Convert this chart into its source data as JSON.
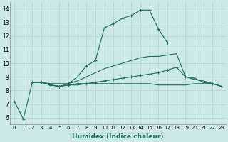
{
  "xlabel": "Humidex (Indice chaleur)",
  "background_color": "#cce8e8",
  "line_color": "#1a6b5a",
  "xlim": [
    -0.5,
    23.5
  ],
  "ylim": [
    5.5,
    14.5
  ],
  "yticks": [
    6,
    7,
    8,
    9,
    10,
    11,
    12,
    13,
    14
  ],
  "xticks": [
    0,
    1,
    2,
    3,
    4,
    5,
    6,
    7,
    8,
    9,
    10,
    11,
    12,
    13,
    14,
    15,
    16,
    17,
    18,
    19,
    20,
    21,
    22,
    23
  ],
  "series": [
    {
      "x": [
        0,
        1,
        2,
        3,
        4,
        5,
        6,
        7,
        8,
        9,
        10,
        11,
        12,
        13,
        14,
        15,
        16,
        17
      ],
      "y": [
        7.2,
        5.9,
        8.6,
        8.6,
        8.4,
        8.3,
        8.5,
        9.0,
        9.8,
        10.2,
        12.6,
        12.9,
        13.3,
        13.5,
        13.9,
        13.9,
        12.5,
        11.5
      ],
      "marker": "+",
      "markersize": 3,
      "linewidth": 0.8
    },
    {
      "x": [
        2,
        3,
        4,
        5,
        6,
        7,
        8,
        9,
        10,
        11,
        12,
        13,
        14,
        15,
        16,
        17,
        18,
        19,
        20,
        21,
        22,
        23
      ],
      "y": [
        8.6,
        8.6,
        8.4,
        8.3,
        8.4,
        8.4,
        8.5,
        8.5,
        8.5,
        8.5,
        8.5,
        8.5,
        8.5,
        8.5,
        8.4,
        8.4,
        8.4,
        8.4,
        8.5,
        8.5,
        8.5,
        8.3
      ],
      "marker": null,
      "markersize": 0,
      "linewidth": 0.8
    },
    {
      "x": [
        2,
        3,
        4,
        5,
        6,
        7,
        8,
        9,
        10,
        11,
        12,
        13,
        14,
        15,
        16,
        17,
        18,
        19,
        20,
        21,
        22,
        23
      ],
      "y": [
        8.6,
        8.6,
        8.5,
        8.5,
        8.5,
        8.7,
        9.0,
        9.3,
        9.6,
        9.8,
        10.0,
        10.2,
        10.4,
        10.5,
        10.5,
        10.6,
        10.7,
        9.0,
        8.8,
        8.7,
        8.5,
        8.3
      ],
      "marker": null,
      "markersize": 0,
      "linewidth": 0.8
    },
    {
      "x": [
        2,
        3,
        4,
        5,
        6,
        7,
        8,
        9,
        10,
        11,
        12,
        13,
        14,
        15,
        16,
        17,
        18,
        19,
        20,
        21,
        22,
        23
      ],
      "y": [
        8.6,
        8.6,
        8.4,
        8.3,
        8.4,
        8.5,
        8.5,
        8.6,
        8.7,
        8.8,
        8.9,
        9.0,
        9.1,
        9.2,
        9.3,
        9.5,
        9.7,
        9.0,
        8.9,
        8.6,
        8.5,
        8.3
      ],
      "marker": "+",
      "markersize": 3,
      "linewidth": 0.8
    }
  ]
}
